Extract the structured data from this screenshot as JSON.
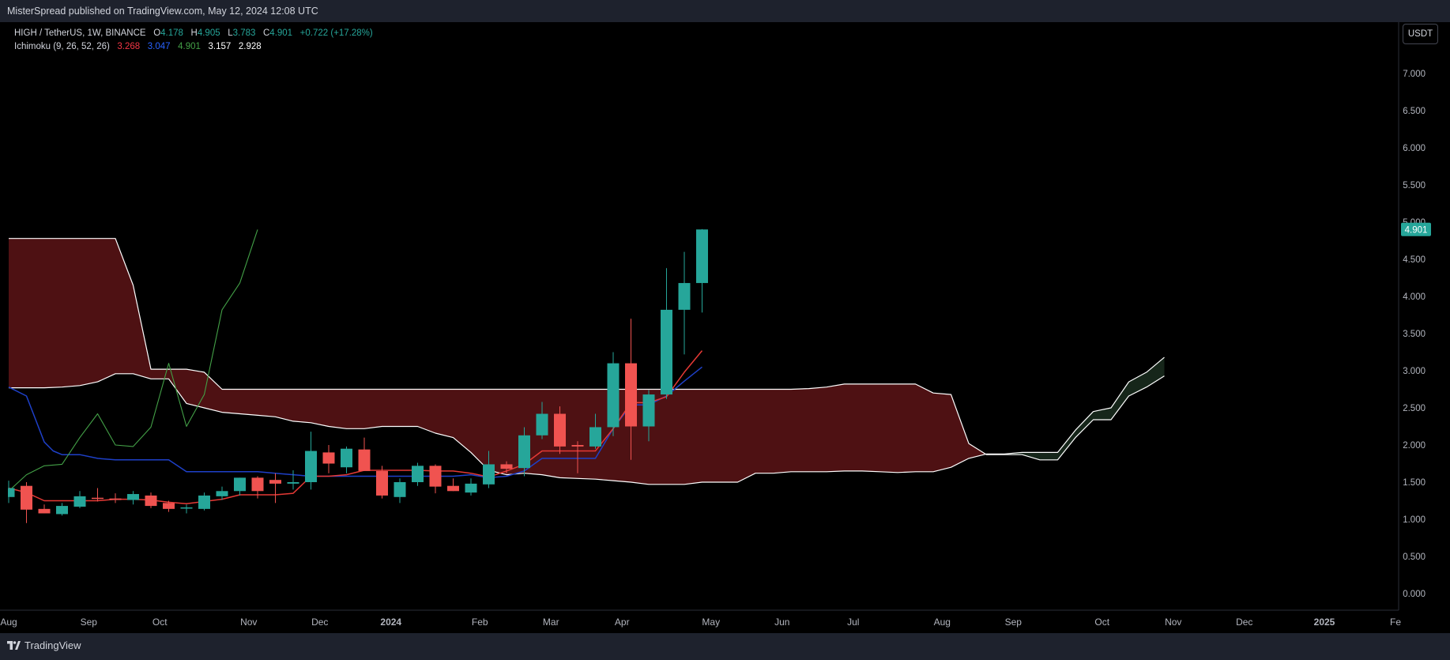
{
  "header": {
    "published": "MisterSpread published on TradingView.com, May 12, 2024 12:08 UTC"
  },
  "legend": {
    "symbol": "HIGH / TetherUS, 1W, BINANCE",
    "o_label": "O",
    "o_value": "4.178",
    "h_label": "H",
    "h_value": "4.905",
    "l_label": "L",
    "l_value": "3.783",
    "c_label": "C",
    "c_value": "4.901",
    "change": "+0.722 (+17.28%)",
    "indicator_name": "Ichimoku (9, 26, 52, 26)",
    "ind_values": [
      "3.268",
      "3.047",
      "4.901",
      "3.157",
      "2.928"
    ]
  },
  "currency_button": "USDT",
  "footer": {
    "brand": "TradingView",
    "logo_icon": "tradingview-logo-icon"
  },
  "colors": {
    "up": "#26a69a",
    "down": "#f05350",
    "tenkan": "#e53935",
    "kijun": "#1e40c8",
    "chikou": "#43a047",
    "span": "#ffffff",
    "cloud_bear": "#4e1113",
    "cloud_bull": "#16261a",
    "panel": "#1e222d",
    "axis_line": "#2a2e39"
  },
  "chart_data": {
    "type": "candlestick",
    "title": "HIGH / TetherUS, 1W, BINANCE",
    "ylim": [
      -0.2,
      7.5
    ],
    "y_ticks": [
      "7.000",
      "6.500",
      "6.000",
      "5.500",
      "5.000",
      "4.500",
      "4.000",
      "3.500",
      "3.000",
      "2.500",
      "2.000",
      "1.500",
      "1.000",
      "0.500",
      "0.000"
    ],
    "last_price": "4.901",
    "x_labels": [
      "Aug",
      "Sep",
      "Oct",
      "Nov",
      "Dec",
      "2024",
      "Feb",
      "Mar",
      "Apr",
      "May",
      "Jun",
      "Jul",
      "Aug",
      "Sep",
      "Oct",
      "Nov",
      "Dec",
      "2025",
      "Fe"
    ],
    "x_label_weeks": [
      0,
      4.5,
      8.5,
      13.5,
      17.5,
      21.5,
      26.5,
      30.5,
      34.5,
      39.5,
      43.5,
      47.5,
      52.5,
      56.5,
      61.5,
      65.5,
      69.5,
      74,
      78
    ],
    "candles": [
      {
        "week": 0,
        "o": 1.3,
        "h": 1.52,
        "l": 1.22,
        "c": 1.42
      },
      {
        "week": 1,
        "o": 1.45,
        "h": 1.5,
        "l": 0.95,
        "c": 1.13
      },
      {
        "week": 2,
        "o": 1.14,
        "h": 1.2,
        "l": 1.08,
        "c": 1.08
      },
      {
        "week": 3,
        "o": 1.07,
        "h": 1.22,
        "l": 1.05,
        "c": 1.18
      },
      {
        "week": 4,
        "o": 1.17,
        "h": 1.38,
        "l": 1.15,
        "c": 1.31
      },
      {
        "week": 5,
        "o": 1.29,
        "h": 1.42,
        "l": 1.24,
        "c": 1.28
      },
      {
        "week": 6,
        "o": 1.28,
        "h": 1.35,
        "l": 1.22,
        "c": 1.26
      },
      {
        "week": 7,
        "o": 1.26,
        "h": 1.38,
        "l": 1.2,
        "c": 1.34
      },
      {
        "week": 8,
        "o": 1.32,
        "h": 1.36,
        "l": 1.15,
        "c": 1.18
      },
      {
        "week": 9,
        "o": 1.22,
        "h": 1.25,
        "l": 1.1,
        "c": 1.14
      },
      {
        "week": 10,
        "o": 1.16,
        "h": 1.2,
        "l": 1.08,
        "c": 1.16
      },
      {
        "week": 11,
        "o": 1.14,
        "h": 1.36,
        "l": 1.12,
        "c": 1.32
      },
      {
        "week": 12,
        "o": 1.31,
        "h": 1.44,
        "l": 1.26,
        "c": 1.38
      },
      {
        "week": 13,
        "o": 1.38,
        "h": 1.56,
        "l": 1.32,
        "c": 1.56
      },
      {
        "week": 14,
        "o": 1.56,
        "h": 1.58,
        "l": 1.28,
        "c": 1.38
      },
      {
        "week": 15,
        "o": 1.53,
        "h": 1.62,
        "l": 1.22,
        "c": 1.48
      },
      {
        "week": 16,
        "o": 1.48,
        "h": 1.66,
        "l": 1.4,
        "c": 1.5
      },
      {
        "week": 17,
        "o": 1.5,
        "h": 2.18,
        "l": 1.4,
        "c": 1.92
      },
      {
        "week": 18,
        "o": 1.9,
        "h": 2.0,
        "l": 1.62,
        "c": 1.75
      },
      {
        "week": 19,
        "o": 1.7,
        "h": 1.98,
        "l": 1.62,
        "c": 1.95
      },
      {
        "week": 20,
        "o": 1.94,
        "h": 2.1,
        "l": 1.65,
        "c": 1.65
      },
      {
        "week": 21,
        "o": 1.65,
        "h": 1.72,
        "l": 1.28,
        "c": 1.32
      },
      {
        "week": 22,
        "o": 1.3,
        "h": 1.55,
        "l": 1.22,
        "c": 1.5
      },
      {
        "week": 23,
        "o": 1.5,
        "h": 1.76,
        "l": 1.45,
        "c": 1.72
      },
      {
        "week": 24,
        "o": 1.72,
        "h": 1.74,
        "l": 1.35,
        "c": 1.44
      },
      {
        "week": 25,
        "o": 1.45,
        "h": 1.55,
        "l": 1.38,
        "c": 1.38
      },
      {
        "week": 26,
        "o": 1.36,
        "h": 1.55,
        "l": 1.32,
        "c": 1.48
      },
      {
        "week": 27,
        "o": 1.47,
        "h": 1.92,
        "l": 1.42,
        "c": 1.74
      },
      {
        "week": 28,
        "o": 1.74,
        "h": 1.78,
        "l": 1.62,
        "c": 1.68
      },
      {
        "week": 29,
        "o": 1.69,
        "h": 2.24,
        "l": 1.58,
        "c": 2.13
      },
      {
        "week": 30,
        "o": 2.13,
        "h": 2.58,
        "l": 2.08,
        "c": 2.42
      },
      {
        "week": 31,
        "o": 2.42,
        "h": 2.52,
        "l": 1.88,
        "c": 1.98
      },
      {
        "week": 32,
        "o": 2.0,
        "h": 2.05,
        "l": 1.62,
        "c": 1.98
      },
      {
        "week": 33,
        "o": 1.98,
        "h": 2.42,
        "l": 1.95,
        "c": 2.24
      },
      {
        "week": 34,
        "o": 2.24,
        "h": 3.25,
        "l": 2.12,
        "c": 3.1
      },
      {
        "week": 35,
        "o": 3.1,
        "h": 3.7,
        "l": 1.8,
        "c": 2.25
      },
      {
        "week": 36,
        "o": 2.25,
        "h": 2.74,
        "l": 2.05,
        "c": 2.68
      },
      {
        "week": 37,
        "o": 2.68,
        "h": 4.38,
        "l": 2.62,
        "c": 3.82
      },
      {
        "week": 38,
        "o": 3.82,
        "h": 4.6,
        "l": 3.22,
        "c": 4.18
      },
      {
        "week": 39,
        "o": 4.18,
        "h": 4.905,
        "l": 3.783,
        "c": 4.901
      }
    ],
    "ichimoku": {
      "tenkan_x": [
        0,
        1,
        2,
        3,
        4,
        5,
        6,
        7,
        8,
        9,
        10,
        11,
        12,
        13,
        14,
        15,
        16,
        17,
        18,
        19,
        20,
        21,
        22,
        23,
        24,
        25,
        26,
        27,
        28,
        29,
        30,
        31,
        32,
        33,
        34,
        35,
        36,
        37,
        38,
        39
      ],
      "tenkan_y": [
        1.42,
        1.36,
        1.25,
        1.25,
        1.25,
        1.25,
        1.27,
        1.27,
        1.26,
        1.23,
        1.21,
        1.24,
        1.27,
        1.33,
        1.33,
        1.33,
        1.35,
        1.58,
        1.58,
        1.6,
        1.66,
        1.66,
        1.66,
        1.66,
        1.65,
        1.65,
        1.62,
        1.57,
        1.65,
        1.74,
        1.92,
        1.92,
        1.92,
        1.92,
        2.22,
        2.57,
        2.57,
        2.65,
        2.98,
        3.27
      ],
      "kijun_x": [
        0,
        1,
        1.5,
        2,
        2.5,
        3,
        4,
        5,
        6,
        7,
        8,
        9,
        10,
        11,
        12,
        13,
        14,
        15,
        16,
        17,
        18,
        19,
        20,
        21,
        22,
        23,
        24,
        25,
        26,
        27,
        28,
        29,
        30,
        31,
        32,
        33,
        34,
        35,
        36,
        37,
        38,
        39
      ],
      "kijun_y": [
        2.78,
        2.66,
        2.35,
        2.04,
        1.92,
        1.87,
        1.87,
        1.82,
        1.8,
        1.8,
        1.8,
        1.8,
        1.64,
        1.64,
        1.64,
        1.64,
        1.64,
        1.62,
        1.6,
        1.58,
        1.58,
        1.58,
        1.58,
        1.58,
        1.58,
        1.58,
        1.58,
        1.58,
        1.6,
        1.56,
        1.58,
        1.65,
        1.82,
        1.82,
        1.82,
        1.82,
        2.22,
        2.54,
        2.54,
        2.66,
        2.86,
        3.05
      ],
      "chikou_x": [
        0,
        1,
        2,
        3,
        4,
        5,
        6,
        7,
        8,
        9,
        10,
        11,
        12,
        13,
        14
      ],
      "chikou_y": [
        1.38,
        1.6,
        1.72,
        1.74,
        2.1,
        2.42,
        2.0,
        1.98,
        2.24,
        3.1,
        2.25,
        2.68,
        3.82,
        4.18,
        4.9
      ],
      "spanA_x": [
        0,
        1,
        2,
        3,
        4,
        5,
        6,
        7,
        8,
        9,
        10,
        11,
        12,
        13,
        14,
        15,
        16,
        17,
        18,
        19,
        20,
        21,
        22,
        23,
        24,
        25,
        26,
        27,
        28,
        29,
        30,
        31,
        32,
        33,
        34,
        35,
        36,
        37,
        38,
        39,
        40,
        41,
        42,
        43,
        44,
        45,
        46,
        47,
        48,
        49,
        50,
        51,
        52,
        53,
        54,
        55,
        56,
        57,
        58,
        59,
        60,
        61,
        62,
        63,
        64,
        65
      ],
      "spanA_y": [
        2.77,
        2.77,
        2.77,
        2.78,
        2.8,
        2.85,
        2.96,
        2.96,
        2.89,
        2.89,
        2.56,
        2.5,
        2.44,
        2.42,
        2.4,
        2.38,
        2.32,
        2.3,
        2.25,
        2.22,
        2.22,
        2.25,
        2.25,
        2.25,
        2.16,
        2.1,
        1.9,
        1.66,
        1.6,
        1.62,
        1.6,
        1.56,
        1.55,
        1.54,
        1.52,
        1.5,
        1.47,
        1.47,
        1.47,
        1.5,
        1.5,
        1.5,
        1.62,
        1.62,
        1.64,
        1.64,
        1.64,
        1.65,
        1.65,
        1.64,
        1.63,
        1.64,
        1.64,
        1.7,
        1.82,
        1.88,
        1.88,
        1.9,
        1.9,
        1.9,
        2.2,
        2.45,
        2.5,
        2.85,
        2.98,
        3.18
      ],
      "spanB_x": [
        0,
        1,
        2,
        3,
        4,
        5,
        6,
        7,
        8,
        9,
        10,
        11,
        12,
        13,
        14,
        15,
        16,
        17,
        18,
        19,
        20,
        21,
        22,
        23,
        24,
        25,
        26,
        27,
        28,
        29,
        30,
        31,
        32,
        33,
        34,
        35,
        36,
        37,
        38,
        39,
        40,
        41,
        42,
        43,
        44,
        45,
        46,
        47,
        48,
        49,
        50,
        51,
        52,
        53,
        54,
        55,
        56,
        57,
        58,
        59,
        60,
        61,
        62,
        63,
        64,
        65
      ],
      "spanB_y": [
        4.78,
        4.78,
        4.78,
        4.78,
        4.78,
        4.78,
        4.78,
        4.15,
        3.02,
        3.02,
        3.02,
        2.98,
        2.75,
        2.75,
        2.75,
        2.75,
        2.75,
        2.75,
        2.75,
        2.75,
        2.75,
        2.75,
        2.75,
        2.75,
        2.75,
        2.75,
        2.75,
        2.75,
        2.75,
        2.75,
        2.75,
        2.75,
        2.75,
        2.75,
        2.75,
        2.75,
        2.75,
        2.75,
        2.75,
        2.75,
        2.75,
        2.75,
        2.75,
        2.75,
        2.75,
        2.76,
        2.78,
        2.82,
        2.82,
        2.82,
        2.82,
        2.82,
        2.7,
        2.68,
        2.02,
        1.87,
        1.87,
        1.87,
        1.8,
        1.8,
        2.1,
        2.34,
        2.34,
        2.66,
        2.78,
        2.93
      ]
    }
  }
}
